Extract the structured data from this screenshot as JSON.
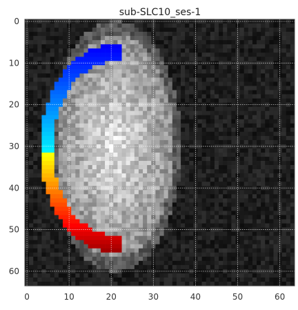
{
  "chart_data": {
    "type": "heatmap",
    "title": "sub-SLC10_ses-1",
    "image_size": [
      64,
      64
    ],
    "xlim": [
      -0.5,
      63.5
    ],
    "ylim": [
      63.5,
      -0.5
    ],
    "x_ticks": [
      0,
      10,
      20,
      30,
      40,
      50,
      60
    ],
    "y_ticks": [
      0,
      10,
      20,
      30,
      40,
      50,
      60
    ],
    "grid": true,
    "background_colormap": "gray",
    "overlay_colormap": "jet",
    "brain_center": [
      21,
      30
    ],
    "brain_radii": [
      14,
      27
    ],
    "overlay_arc_center": [
      21,
      30.5
    ],
    "overlay_arc_radii": [
      18,
      25
    ],
    "overlay_arc_range": [
      6,
      56
    ],
    "overlay_thickness": 3
  }
}
